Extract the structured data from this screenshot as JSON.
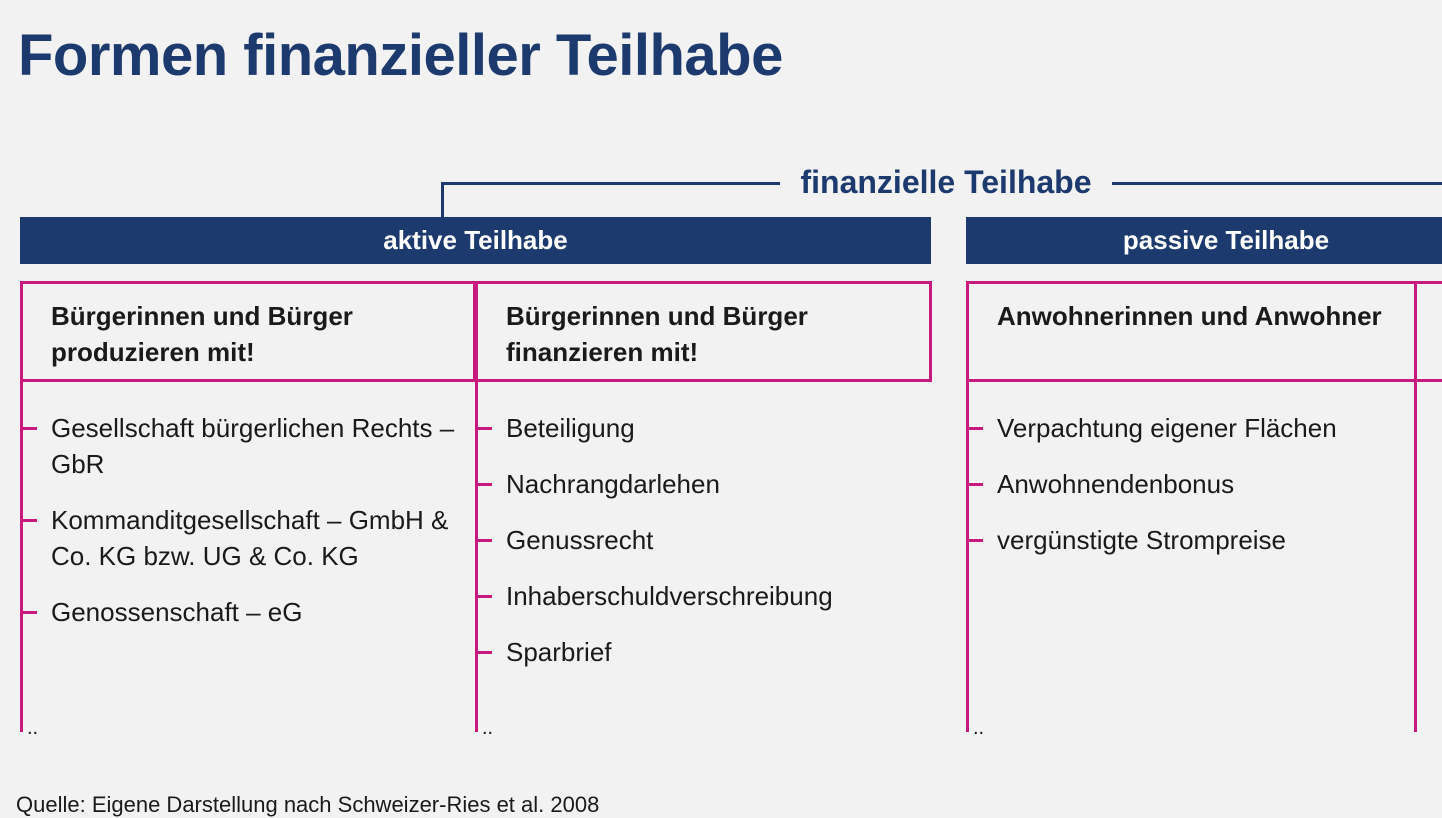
{
  "header": {
    "title": "Formen finanzieller Teilhabe"
  },
  "root": {
    "label": "finanzielle Teilhabe"
  },
  "groups": [
    {
      "label": "aktive Teilhabe",
      "columns": [
        {
          "header": "Bürgerinnen und Bürger produzieren mit!",
          "items": [
            "Gesellschaft bürgerlichen Rechts – GbR",
            "Kommanditgesellschaft – GmbH & Co. KG bzw. UG & Co. KG",
            "Genossenschaft – eG"
          ],
          "more": ".."
        },
        {
          "header": "Bürgerinnen und Bürger finanzieren mit!",
          "items": [
            "Beteiligung",
            "Nachrangdarlehen",
            "Genussrecht",
            "Inhaberschuldverschreibung",
            "Sparbrief"
          ],
          "more": ".."
        }
      ]
    },
    {
      "label": "passive Teilhabe",
      "columns": [
        {
          "header": "Anwohnerinnen und Anwohner",
          "items": [
            "Verpachtung eigener Flächen",
            "Anwohnendenbonus",
            "vergünstigte Strompreise"
          ],
          "more": ".."
        }
      ]
    }
  ],
  "footer": {
    "source": "Quelle: Eigene Darstellung nach Schweizer-Ries et al. 2008"
  }
}
